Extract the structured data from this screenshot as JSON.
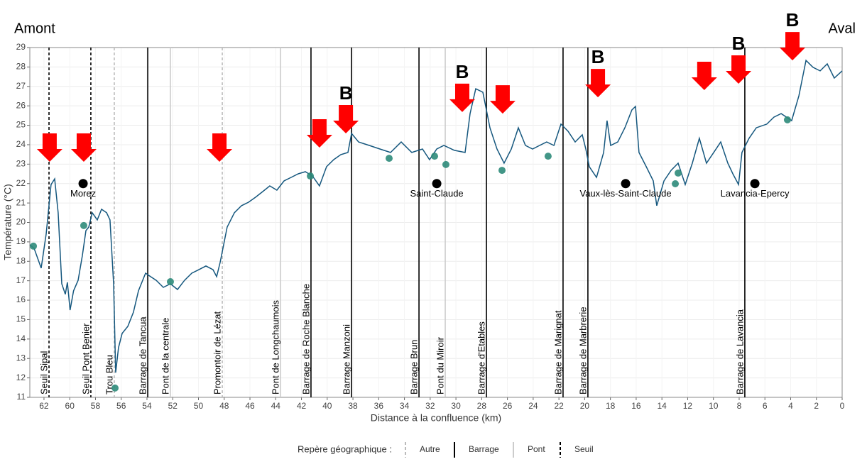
{
  "chart_data": {
    "type": "line",
    "xlabel": "Distance à la confluence (km)",
    "ylabel": "Température (°C)",
    "corner_labels": {
      "left": "Amont",
      "right": "Aval"
    },
    "xlim": [
      63.1,
      0
    ],
    "ylim": [
      11,
      29
    ],
    "xticks": [
      62,
      60,
      58,
      56,
      54,
      52,
      50,
      48,
      46,
      44,
      42,
      40,
      38,
      36,
      34,
      32,
      30,
      28,
      26,
      24,
      22,
      20,
      18,
      16,
      14,
      12,
      10,
      8,
      6,
      4,
      2,
      0
    ],
    "yticks": [
      11,
      12,
      13,
      14,
      15,
      16,
      17,
      18,
      19,
      20,
      21,
      22,
      23,
      24,
      25,
      26,
      27,
      28,
      29
    ],
    "grid": true,
    "series": [
      {
        "mode": "line",
        "color": "#15577e",
        "x": [
          63.1,
          62.77,
          62.22,
          61.83,
          61.45,
          61.17,
          60.9,
          60.62,
          60.34,
          60.18,
          59.97,
          59.7,
          59.35,
          59.02,
          58.74,
          58.52,
          58.25,
          57.86,
          57.53,
          57.14,
          56.87,
          56.59,
          56.43,
          56.21,
          55.93,
          55.49,
          55.05,
          54.66,
          54.11,
          53.72,
          53.28,
          52.73,
          52.18,
          51.63,
          51.08,
          50.52,
          49.97,
          49.42,
          48.87,
          48.59,
          48.32,
          47.77,
          47.21,
          46.66,
          46.11,
          45.56,
          45.01,
          44.46,
          43.91,
          43.35,
          42.8,
          42.25,
          41.7,
          41.15,
          40.6,
          40.05,
          39.49,
          38.94,
          38.39,
          38.11,
          37.56,
          36.73,
          35.91,
          35.08,
          34.25,
          33.43,
          32.6,
          32.05,
          31.49,
          30.94,
          30.12,
          29.29,
          28.9,
          28.46,
          27.91,
          27.36,
          26.81,
          26.26,
          25.7,
          25.15,
          24.6,
          24.05,
          23.5,
          22.95,
          22.39,
          21.84,
          21.29,
          20.74,
          20.19,
          19.91,
          19.64,
          19.08,
          18.53,
          18.26,
          17.98,
          17.43,
          16.88,
          16.33,
          16.05,
          15.78,
          15.22,
          14.67,
          14.4,
          13.84,
          13.29,
          12.74,
          12.19,
          11.64,
          11.09,
          10.54,
          9.98,
          9.43,
          8.88,
          8.49,
          8.05,
          7.78,
          7.23,
          6.67,
          5.85,
          5.3,
          4.74,
          3.92,
          3.36,
          2.81,
          2.26,
          1.71,
          1.16,
          0.61,
          0
        ],
        "values": [
          18.85,
          18.67,
          17.65,
          19.4,
          21.95,
          22.24,
          20.5,
          16.84,
          16.3,
          16.92,
          15.49,
          16.48,
          17.02,
          18.3,
          19.58,
          19.76,
          20.5,
          20.13,
          20.68,
          20.5,
          20.13,
          16.84,
          12.27,
          13.56,
          14.29,
          14.65,
          15.38,
          16.48,
          17.39,
          17.21,
          17.02,
          16.66,
          16.84,
          16.55,
          17.02,
          17.39,
          17.57,
          17.76,
          17.57,
          17.21,
          17.94,
          19.76,
          20.5,
          20.86,
          21.04,
          21.3,
          21.59,
          21.88,
          21.66,
          22.14,
          22.32,
          22.5,
          22.61,
          22.39,
          21.88,
          22.87,
          23.23,
          23.49,
          23.6,
          24.58,
          24.14,
          23.96,
          23.78,
          23.6,
          24.14,
          23.6,
          23.78,
          23.23,
          23.78,
          23.96,
          23.71,
          23.6,
          25.6,
          26.88,
          26.7,
          24.87,
          23.78,
          23.05,
          23.78,
          24.87,
          23.96,
          23.78,
          23.96,
          24.14,
          23.96,
          25.06,
          24.69,
          24.14,
          24.51,
          23.78,
          22.87,
          22.32,
          23.6,
          25.24,
          23.96,
          24.14,
          24.87,
          25.79,
          25.97,
          23.6,
          22.87,
          22.14,
          20.86,
          22.14,
          22.68,
          23.05,
          21.95,
          23.05,
          24.33,
          23.05,
          23.6,
          24.14,
          23.05,
          22.5,
          21.95,
          23.6,
          24.33,
          24.87,
          25.06,
          25.42,
          25.6,
          25.24,
          26.52,
          28.34,
          27.98,
          27.8,
          28.16,
          27.43,
          27.8
        ]
      },
      {
        "mode": "markers",
        "color": "#2e8b7a",
        "x": [
          62.82,
          58.91,
          56.48,
          52.18,
          41.31,
          35.19,
          31.66,
          30.78,
          26.42,
          22.84,
          12.96,
          12.74,
          4.25
        ],
        "values": [
          18.78,
          19.84,
          11.48,
          16.95,
          22.39,
          23.3,
          23.41,
          22.98,
          22.68,
          23.41,
          21.99,
          22.54,
          25.28
        ]
      }
    ],
    "towns": [
      {
        "name": "Morez",
        "x": 58.96,
        "y": 22
      },
      {
        "name": "Saint-Claude",
        "x": 31.49,
        "y": 22
      },
      {
        "name": "Vaux-lès-Saint-Claude",
        "x": 16.82,
        "y": 22
      },
      {
        "name": "Lavancia-Epercy",
        "x": 6.78,
        "y": 22
      }
    ],
    "legend": {
      "title": "Repère géographique :",
      "items": [
        {
          "label": "Autre",
          "color": "#bbbbbb",
          "dash": "4,3"
        },
        {
          "label": "Barrage",
          "color": "#000000",
          "dash": "none"
        },
        {
          "label": "Pont",
          "color": "#cccccc",
          "dash": "none"
        },
        {
          "label": "Seuil",
          "color": "#000000",
          "dash": "4,3"
        }
      ]
    },
    "references": [
      {
        "name": "Seuil Sipal",
        "x": 61.61,
        "kind": "Seuil"
      },
      {
        "name": "Seuil Pont Benier",
        "x": 58.36,
        "kind": "Seuil"
      },
      {
        "name": "Trou Bleu",
        "x": 56.54,
        "kind": "Autre"
      },
      {
        "name": "Barrage de Tancua",
        "x": 53.94,
        "kind": "Barrage"
      },
      {
        "name": "Pont de la centrale",
        "x": 52.18,
        "kind": "Pont"
      },
      {
        "name": "Promontoir de Lézat",
        "x": 48.15,
        "kind": "Autre"
      },
      {
        "name": "Pont de Longchaumois",
        "x": 43.63,
        "kind": "Pont"
      },
      {
        "name": "Barrage de Roche Blanche",
        "x": 41.26,
        "kind": "Barrage"
      },
      {
        "name": "Barrage Manzoni",
        "x": 38.11,
        "kind": "Barrage"
      },
      {
        "name": "Barrage Brun",
        "x": 32.87,
        "kind": "Barrage"
      },
      {
        "name": "Pont du Miroir",
        "x": 30.83,
        "kind": "Pont"
      },
      {
        "name": "Barrage d'Etables",
        "x": 27.63,
        "kind": "Barrage"
      },
      {
        "name": "Barrage de Marignat",
        "x": 21.68,
        "kind": "Barrage"
      },
      {
        "name": "Barrage de Marbrerie",
        "x": 19.75,
        "kind": "Barrage"
      },
      {
        "name": "Barrage de Lavancia",
        "x": 7.56,
        "kind": "Barrage"
      }
    ],
    "arrows": {
      "color": "#ff0000",
      "items": [
        {
          "x": 61.56,
          "y": 23.12
        },
        {
          "x": 58.91,
          "y": 23.12
        },
        {
          "x": 48.37,
          "y": 23.12
        },
        {
          "x": 40.6,
          "y": 23.85
        },
        {
          "x": 38.55,
          "y": 24.58,
          "label": "B"
        },
        {
          "x": 29.51,
          "y": 25.68,
          "label": "B"
        },
        {
          "x": 26.37,
          "y": 25.6
        },
        {
          "x": 18.97,
          "y": 26.44,
          "label": "B"
        },
        {
          "x": 10.71,
          "y": 26.81
        },
        {
          "x": 8.05,
          "y": 27.14,
          "label": "B"
        },
        {
          "x": 3.86,
          "y": 28.34,
          "label": "B"
        }
      ]
    }
  }
}
